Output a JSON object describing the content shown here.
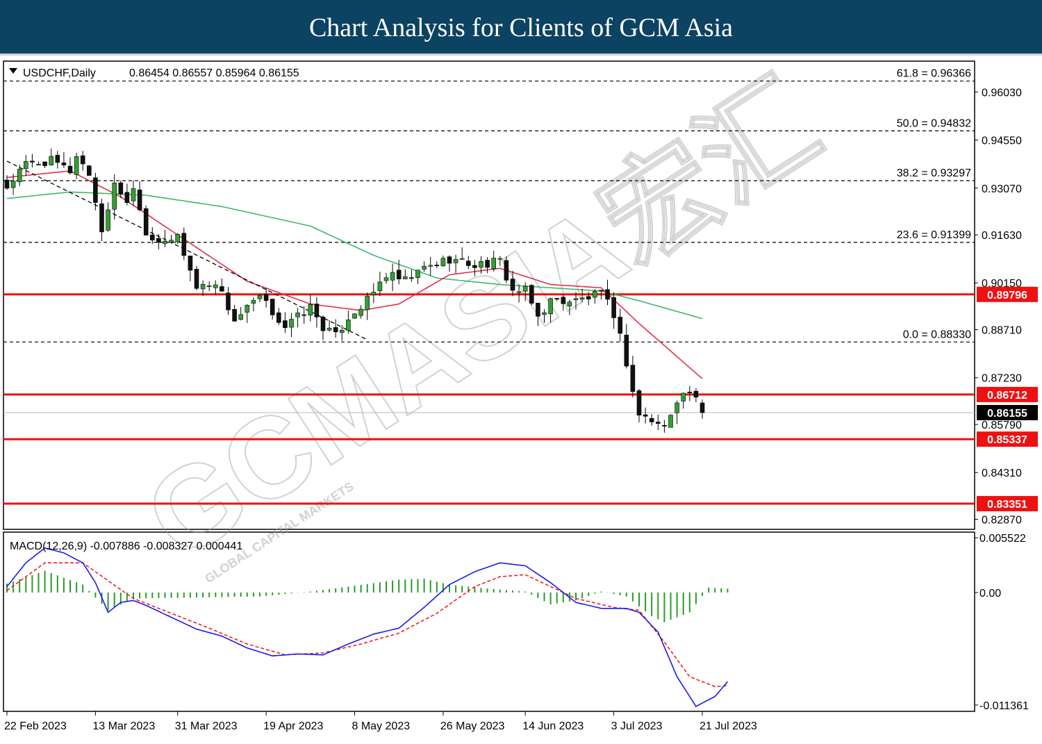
{
  "page": {
    "title": "Chart Analysis for Clients of GCM Asia",
    "watermark": "GCMASIA宏汇",
    "watermark_sub": "GLOBAL CAPITAL MARKETS"
  },
  "colors": {
    "header_bg": "#0c4262",
    "bull_candle": "#33a033",
    "bear_candle": "#111111",
    "ma_fast": "#e0304a",
    "ma_slow": "#3db86a",
    "level_line": "#ee1111",
    "macd_line": "#1a1aee",
    "signal_line": "#ee2222",
    "histogram": "#2a9a2a"
  },
  "chart_data": [
    {
      "type": "candlestick",
      "symbol_header": "USDCHF,Daily",
      "ohlc_header": "0.86454 0.86557 0.85964 0.86155",
      "ohlc_last": {
        "open": 0.86454,
        "high": 0.86557,
        "low": 0.85964,
        "close": 0.86155
      },
      "ylim": [
        0.8256,
        0.9698
      ],
      "y_ticks": [
        "0.96030",
        "0.94550",
        "0.93070",
        "0.91630",
        "0.90150",
        "0.88710",
        "0.87230",
        "0.85790",
        "0.84310",
        "0.82870"
      ],
      "x_ticks": [
        "22 Feb 2023",
        "13 Mar 2023",
        "31 Mar 2023",
        "19 Apr 2023",
        "8 May 2023",
        "26 May 2023",
        "14 Jun 2023",
        "3 Jul 2023",
        "21 Jul 2023"
      ],
      "x_tick_bars": [
        0,
        14,
        27,
        41,
        55,
        69,
        82,
        96,
        110
      ],
      "bar_count": 111,
      "close_anchors": [
        [
          0,
          0.931
        ],
        [
          3,
          0.938
        ],
        [
          7,
          0.939
        ],
        [
          10,
          0.936
        ],
        [
          11,
          0.941
        ],
        [
          13,
          0.935
        ],
        [
          15,
          0.918
        ],
        [
          16,
          0.923
        ],
        [
          17,
          0.933
        ],
        [
          19,
          0.926
        ],
        [
          20,
          0.932
        ],
        [
          22,
          0.917
        ],
        [
          25,
          0.913
        ],
        [
          27,
          0.916
        ],
        [
          30,
          0.9
        ],
        [
          33,
          0.902
        ],
        [
          36,
          0.89
        ],
        [
          40,
          0.897
        ],
        [
          44,
          0.888
        ],
        [
          48,
          0.894
        ],
        [
          50,
          0.888
        ],
        [
          52,
          0.885
        ],
        [
          54,
          0.891
        ],
        [
          57,
          0.896
        ],
        [
          60,
          0.904
        ],
        [
          63,
          0.902
        ],
        [
          66,
          0.906
        ],
        [
          70,
          0.909
        ],
        [
          74,
          0.907
        ],
        [
          78,
          0.908
        ],
        [
          80,
          0.899
        ],
        [
          82,
          0.899
        ],
        [
          84,
          0.891
        ],
        [
          86,
          0.896
        ],
        [
          90,
          0.896
        ],
        [
          94,
          0.898
        ],
        [
          96,
          0.892
        ],
        [
          97,
          0.885
        ],
        [
          98,
          0.877
        ],
        [
          99,
          0.868
        ],
        [
          100,
          0.861
        ],
        [
          102,
          0.859
        ],
        [
          104,
          0.857
        ],
        [
          106,
          0.866
        ],
        [
          108,
          0.868
        ],
        [
          109,
          0.865
        ],
        [
          110,
          0.8616
        ]
      ],
      "fast_ma": [
        [
          0,
          0.934
        ],
        [
          10,
          0.936
        ],
        [
          18,
          0.928
        ],
        [
          28,
          0.915
        ],
        [
          38,
          0.902
        ],
        [
          48,
          0.895
        ],
        [
          56,
          0.893
        ],
        [
          62,
          0.895
        ],
        [
          70,
          0.904
        ],
        [
          78,
          0.906
        ],
        [
          86,
          0.901
        ],
        [
          94,
          0.9
        ],
        [
          100,
          0.889
        ],
        [
          110,
          0.872
        ]
      ],
      "slow_ma": [
        [
          0,
          0.9275
        ],
        [
          10,
          0.9295
        ],
        [
          22,
          0.9285
        ],
        [
          34,
          0.925
        ],
        [
          48,
          0.919
        ],
        [
          58,
          0.91
        ],
        [
          68,
          0.903
        ],
        [
          78,
          0.901
        ],
        [
          86,
          0.9
        ],
        [
          94,
          0.899
        ],
        [
          100,
          0.896
        ],
        [
          110,
          0.8905
        ]
      ],
      "trendline": [
        [
          0,
          0.939
        ],
        [
          57,
          0.884
        ]
      ],
      "fibonacci": [
        {
          "label": "61.8 = 0.96366",
          "value": 0.96366
        },
        {
          "label": "50.0 = 0.94832",
          "value": 0.94832
        },
        {
          "label": "38.2 = 0.93297",
          "value": 0.93297
        },
        {
          "label": "23.6 = 0.91399",
          "value": 0.91399
        },
        {
          "label": "0.0 = 0.88330",
          "value": 0.8833
        }
      ],
      "levels": [
        {
          "label": "0.89796",
          "value": 0.89796
        },
        {
          "label": "0.86712",
          "value": 0.86712
        },
        {
          "label": "0.85337",
          "value": 0.85337
        },
        {
          "label": "0.83351",
          "value": 0.83351
        }
      ],
      "current_price": {
        "label": "0.86155",
        "value": 0.86155
      }
    },
    {
      "type": "line",
      "indicator_header": "MACD(12,26,9) -0.007886 -0.008327 0.000441",
      "ylim": [
        -0.012,
        0.0061
      ],
      "y_ticks": [
        {
          "label": "0.005522",
          "value": 0.005522
        },
        {
          "label": "0.00",
          "value": 0.0
        },
        {
          "label": "-0.011361",
          "value": -0.011361
        }
      ],
      "macd_anchors": [
        [
          0,
          0.0006
        ],
        [
          3,
          0.003
        ],
        [
          6,
          0.0045
        ],
        [
          9,
          0.004
        ],
        [
          12,
          0.003
        ],
        [
          14,
          0.001
        ],
        [
          16,
          -0.002
        ],
        [
          18,
          -0.001
        ],
        [
          20,
          -0.0008
        ],
        [
          22,
          -0.0013
        ],
        [
          26,
          -0.0025
        ],
        [
          30,
          -0.0037
        ],
        [
          34,
          -0.0044
        ],
        [
          38,
          -0.0056
        ],
        [
          42,
          -0.0064
        ],
        [
          46,
          -0.0062
        ],
        [
          50,
          -0.0063
        ],
        [
          54,
          -0.0052
        ],
        [
          58,
          -0.0042
        ],
        [
          62,
          -0.0036
        ],
        [
          66,
          -0.0015
        ],
        [
          70,
          0.0008
        ],
        [
          74,
          0.0021
        ],
        [
          78,
          0.003
        ],
        [
          82,
          0.0027
        ],
        [
          86,
          0.001
        ],
        [
          90,
          -0.001
        ],
        [
          94,
          -0.0016
        ],
        [
          98,
          -0.0016
        ],
        [
          100,
          -0.002
        ],
        [
          103,
          -0.004
        ],
        [
          106,
          -0.0085
        ],
        [
          109,
          -0.0115
        ],
        [
          112,
          -0.0105
        ],
        [
          114,
          -0.009
        ]
      ],
      "signal_anchors": [
        [
          0,
          0.0002
        ],
        [
          6,
          0.003
        ],
        [
          12,
          0.003
        ],
        [
          16,
          0.0012
        ],
        [
          20,
          -0.0006
        ],
        [
          26,
          -0.0021
        ],
        [
          32,
          -0.0036
        ],
        [
          38,
          -0.0052
        ],
        [
          44,
          -0.0063
        ],
        [
          50,
          -0.0061
        ],
        [
          56,
          -0.0052
        ],
        [
          62,
          -0.0041
        ],
        [
          68,
          -0.0021
        ],
        [
          74,
          0.0006
        ],
        [
          78,
          0.0016
        ],
        [
          82,
          0.0018
        ],
        [
          86,
          0.0006
        ],
        [
          90,
          -0.0006
        ],
        [
          96,
          -0.0015
        ],
        [
          100,
          -0.0018
        ],
        [
          104,
          -0.005
        ],
        [
          108,
          -0.0085
        ],
        [
          112,
          -0.0095
        ],
        [
          114,
          -0.0094
        ]
      ]
    }
  ]
}
